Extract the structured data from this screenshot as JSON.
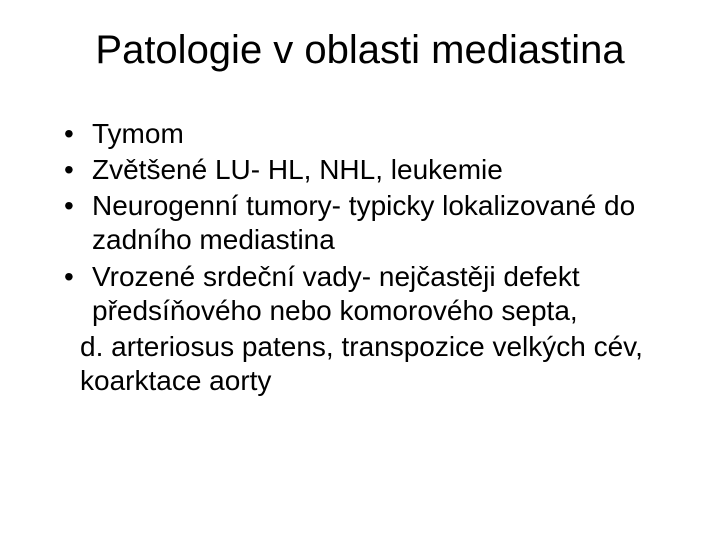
{
  "slide": {
    "title": "Patologie v oblasti mediastina",
    "title_fontsize": 40,
    "body_fontsize": 28,
    "background_color": "#ffffff",
    "text_color": "#000000",
    "font_family": "Arial",
    "bullets": [
      {
        "text": "Tymom"
      },
      {
        "text": "Zvětšené LU- HL, NHL, leukemie"
      },
      {
        "text": "Neurogenní tumory- typicky lokalizované do zadního mediastina"
      },
      {
        "text": "Vrozené srdeční vady- nejčastěji defekt předsíňového nebo komorového septa,"
      }
    ],
    "continuation": [
      "d. arteriosus patens, transpozice velkých cév, koarktace aorty"
    ]
  }
}
